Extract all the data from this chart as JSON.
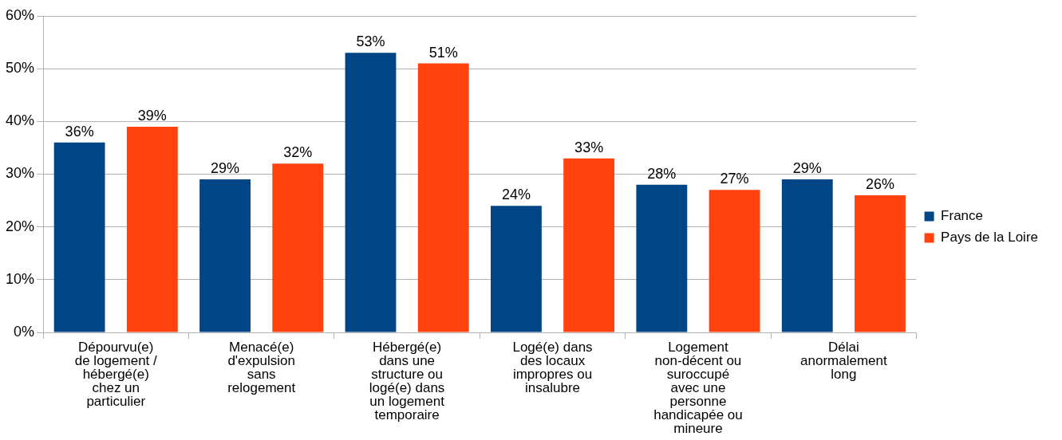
{
  "chart_data": {
    "type": "bar",
    "categories": [
      "Dépourvu(e) de logement / hébergé(e) chez un particulier",
      "Menacé(e) d'expulsion sans relogement",
      "Hébergé(e) dans une structure ou logé(e) dans un logement temporaire",
      "Logé(e) dans des locaux impropres ou insalubre",
      "Logement non-décent ou suroccupé avec une personne handicapée ou mineure",
      "Délai anormalement long"
    ],
    "series": [
      {
        "name": "France",
        "color": "#004586",
        "values": [
          36,
          29,
          53,
          24,
          28,
          29
        ],
        "value_labels": [
          "36%",
          "29%",
          "53%",
          "24%",
          "28%",
          "29%"
        ]
      },
      {
        "name": "Pays de la Loire",
        "color": "#ff420e",
        "values": [
          39,
          32,
          51,
          33,
          27,
          26
        ],
        "value_labels": [
          "39%",
          "32%",
          "51%",
          "33%",
          "27%",
          "26%"
        ]
      }
    ],
    "ylim": [
      0,
      60
    ],
    "yticks": [
      {
        "value": 0,
        "label": "0%"
      },
      {
        "value": 10,
        "label": "10%"
      },
      {
        "value": 20,
        "label": "20%"
      },
      {
        "value": 30,
        "label": "30%"
      },
      {
        "value": 40,
        "label": "40%"
      },
      {
        "value": 50,
        "label": "50%"
      },
      {
        "value": 60,
        "label": "60%"
      }
    ],
    "grid": "y",
    "legend": "right"
  }
}
